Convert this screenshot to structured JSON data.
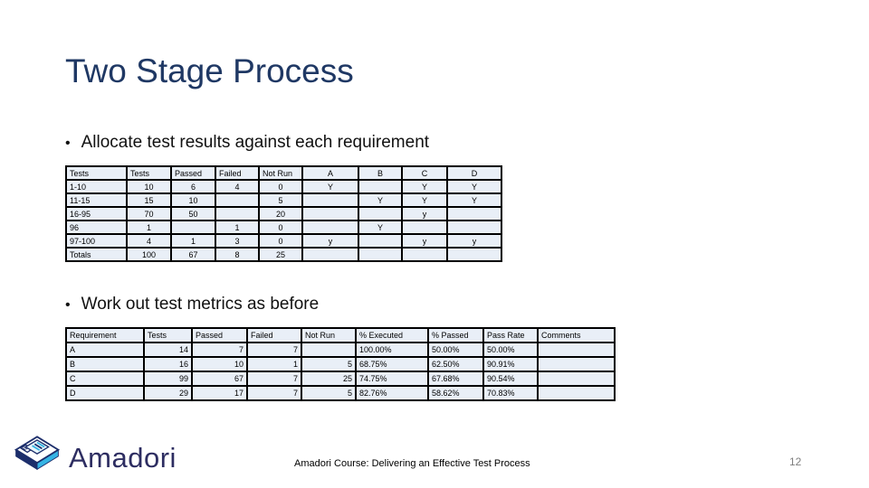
{
  "slide": {
    "title": "Two Stage Process",
    "bullet1": "Allocate test results against each requirement",
    "bullet2": "Work out test metrics as before",
    "footer": "Amadori Course: Delivering an Effective Test Process",
    "page_number": "12"
  },
  "logo": {
    "text": "Amadori",
    "icon": "book-logo-icon"
  },
  "colors": {
    "title_text": "#1F3864",
    "table_cell_bg": "#e9eff7",
    "table_border": "#000000",
    "logo_navy": "#2d2d61",
    "logo_light_blue": "#35b4e4",
    "logo_dark_navy": "#1c2e6b",
    "page_number_gray": "#7f7f7f"
  },
  "table1": {
    "headers": [
      "Tests",
      "Tests",
      "Passed",
      "Failed",
      "Not Run",
      "A",
      "B",
      "C",
      "D"
    ],
    "rows": [
      [
        "1-10",
        "10",
        "6",
        "4",
        "0",
        "Y",
        "",
        "Y",
        "Y"
      ],
      [
        "11-15",
        "15",
        "10",
        "",
        "5",
        "",
        "Y",
        "Y",
        "Y"
      ],
      [
        "16-95",
        "70",
        "50",
        "",
        "20",
        "",
        "",
        "y",
        ""
      ],
      [
        "96",
        "1",
        "",
        "1",
        "0",
        "",
        "Y",
        "",
        ""
      ],
      [
        "97-100",
        "4",
        "1",
        "3",
        "0",
        "y",
        "",
        "y",
        "y"
      ],
      [
        "Totals",
        "100",
        "67",
        "8",
        "25",
        "",
        "",
        "",
        ""
      ]
    ]
  },
  "table2": {
    "headers": [
      "Requirement",
      "Tests",
      "Passed",
      "Failed",
      "Not Run",
      "% Executed",
      "% Passed",
      "Pass Rate",
      "Comments"
    ],
    "rows": [
      [
        "A",
        "14",
        "7",
        "7",
        "",
        "100.00%",
        "50.00%",
        "50.00%",
        ""
      ],
      [
        "B",
        "16",
        "10",
        "1",
        "5",
        "68.75%",
        "62.50%",
        "90.91%",
        ""
      ],
      [
        "C",
        "99",
        "67",
        "7",
        "25",
        "74.75%",
        "67.68%",
        "90.54%",
        ""
      ],
      [
        "D",
        "29",
        "17",
        "7",
        "5",
        "82.76%",
        "58.62%",
        "70.83%",
        ""
      ]
    ]
  }
}
